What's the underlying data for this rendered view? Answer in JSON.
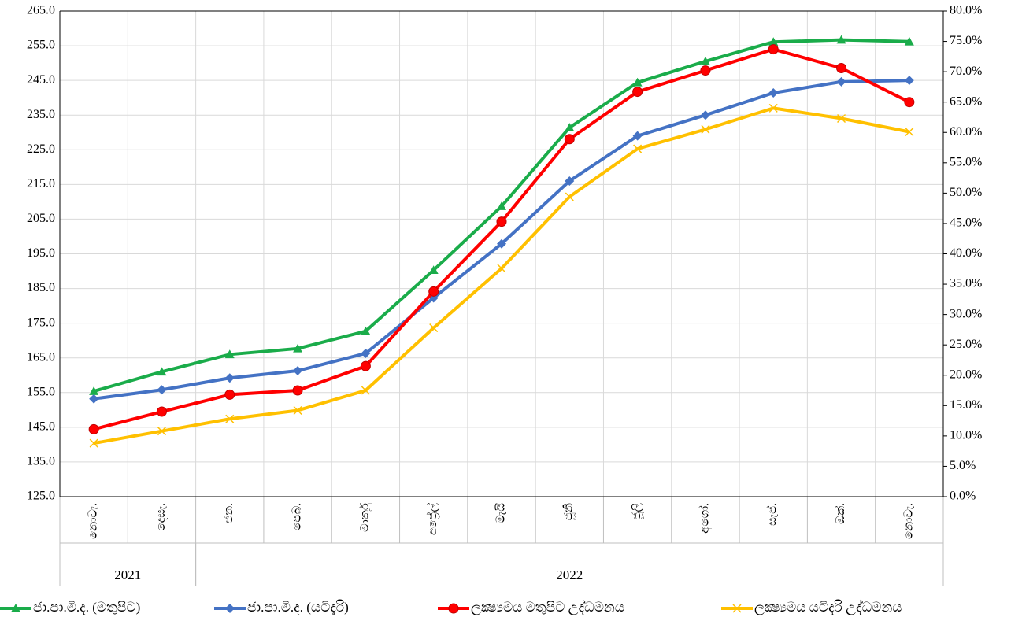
{
  "chart_data": {
    "type": "line",
    "categories": [
      "නොවැ.",
      "දෙසැ.",
      "ජන.",
      "පෙබ.",
      "මාර්තු",
      "අප්‍රේල්",
      "මැයි",
      "ජූනි",
      "ජූලි",
      "අගෝ.",
      "සැප්.",
      "ඔක්.",
      "නොවැ."
    ],
    "groups": [
      {
        "label": "2021",
        "start": 0,
        "end": 1
      },
      {
        "label": "2022",
        "start": 2,
        "end": 12
      }
    ],
    "ylim": [
      125,
      265
    ],
    "yticks": [
      {
        "value": 125,
        "label": "125.0"
      },
      {
        "value": 135,
        "label": "135.0"
      },
      {
        "value": 145,
        "label": "145.0"
      },
      {
        "value": 155,
        "label": "155.0"
      },
      {
        "value": 165,
        "label": "165.0"
      },
      {
        "value": 175,
        "label": "175.0"
      },
      {
        "value": 185,
        "label": "185.0"
      },
      {
        "value": 195,
        "label": "195.0"
      },
      {
        "value": 205,
        "label": "205.0"
      },
      {
        "value": 215,
        "label": "215.0"
      },
      {
        "value": 225,
        "label": "225.0"
      },
      {
        "value": 235,
        "label": "235.0"
      },
      {
        "value": 245,
        "label": "245.0"
      },
      {
        "value": 255,
        "label": "255.0"
      },
      {
        "value": 265,
        "label": "265.0"
      }
    ],
    "y2lim": [
      0,
      80
    ],
    "y2ticks": [
      {
        "value": 0,
        "label": "0.0%"
      },
      {
        "value": 5,
        "label": "5.0%"
      },
      {
        "value": 10,
        "label": "10.0%"
      },
      {
        "value": 15,
        "label": "15.0%"
      },
      {
        "value": 20,
        "label": "20.0%"
      },
      {
        "value": 25,
        "label": "25.0%"
      },
      {
        "value": 30,
        "label": "30.0%"
      },
      {
        "value": 35,
        "label": "35.0%"
      },
      {
        "value": 40,
        "label": "40.0%"
      },
      {
        "value": 45,
        "label": "45.0%"
      },
      {
        "value": 50,
        "label": "50.0%"
      },
      {
        "value": 55,
        "label": "55.0%"
      },
      {
        "value": 60,
        "label": "60.0%"
      },
      {
        "value": 65,
        "label": "65.0%"
      },
      {
        "value": 70,
        "label": "70.0%"
      },
      {
        "value": 75,
        "label": "75.0%"
      },
      {
        "value": 80,
        "label": "80.0%"
      }
    ],
    "grid": true,
    "legend": "bottom",
    "series": [
      {
        "name": "ජා.පා.මි.ද. (මතුපිට)",
        "color": "#1aac4a",
        "marker": "triangle",
        "axis": "y",
        "values": [
          155.4,
          161.0,
          166.0,
          167.7,
          172.7,
          190.3,
          208.7,
          231.4,
          244.4,
          250.5,
          256.1,
          256.7,
          256.2
        ]
      },
      {
        "name": "ජා.පා.මි.ද. (යටිදැරි)",
        "color": "#4472c4",
        "marker": "diamond",
        "axis": "y",
        "values": [
          153.2,
          155.8,
          159.2,
          161.3,
          166.3,
          182.3,
          197.9,
          216.0,
          229.0,
          235.0,
          241.4,
          244.6,
          245.0
        ]
      },
      {
        "name": "ලක්‍ෂ්‍යමය මතුපිට උද්ධමනය",
        "color": "#ff0000",
        "marker": "circle",
        "axis": "y2",
        "values": [
          11.1,
          14.0,
          16.8,
          17.5,
          21.5,
          33.8,
          45.3,
          58.9,
          66.7,
          70.2,
          73.7,
          70.6,
          65.0
        ]
      },
      {
        "name": "ලක්‍ෂ්‍යමය යටිදැරි උද්ධමනය",
        "color": "#ffc000",
        "marker": "x",
        "axis": "y2",
        "values": [
          8.8,
          10.8,
          12.8,
          14.2,
          17.5,
          27.8,
          37.6,
          49.4,
          57.3,
          60.5,
          64.0,
          62.3,
          60.1
        ]
      }
    ]
  }
}
